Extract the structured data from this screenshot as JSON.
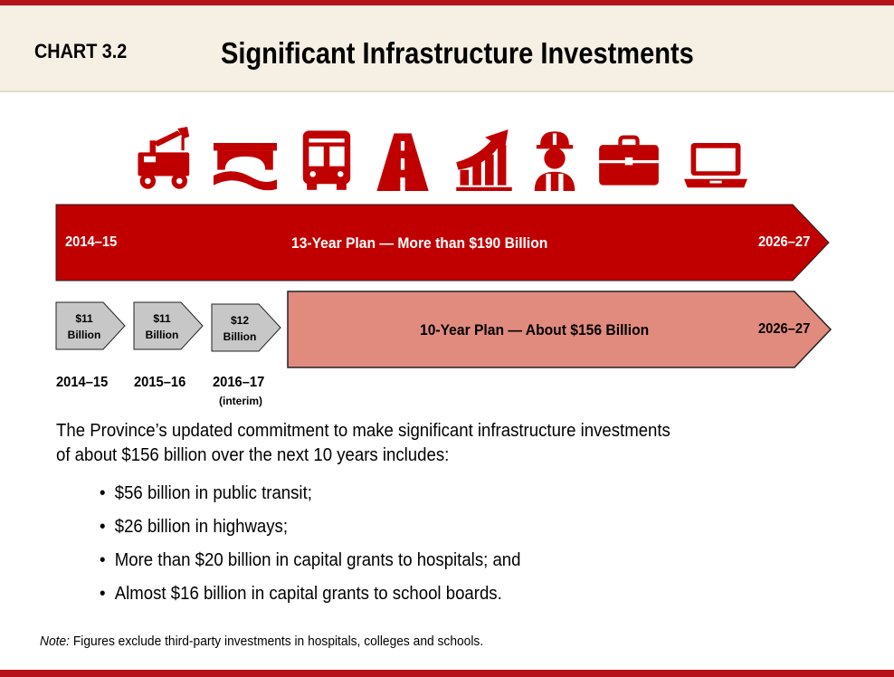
{
  "header": {
    "chart_label": "CHART 3.2",
    "title": "Significant Infrastructure Investments"
  },
  "icons": [
    "crane-truck-icon",
    "bridge-icon",
    "bus-icon",
    "highway-icon",
    "growth-chart-icon",
    "worker-icon",
    "briefcase-icon",
    "laptop-icon"
  ],
  "colors": {
    "dark_red": "#c00000",
    "light_red": "#e08b7e",
    "grey_chevron": "#c7c7c7",
    "accent_rule": "#b5121b"
  },
  "plan13": {
    "start": "2014–15",
    "label": "13-Year Plan — More than $190 Billion",
    "end": "2026–27"
  },
  "annual": [
    {
      "amount": "$11",
      "unit": "Billion",
      "year": "2014–15",
      "note": ""
    },
    {
      "amount": "$11",
      "unit": "Billion",
      "year": "2015–16",
      "note": ""
    },
    {
      "amount": "$12",
      "unit": "Billion",
      "year": "2016–17",
      "note": "(interim)"
    }
  ],
  "plan10": {
    "label": "10-Year Plan  — About $156 Billion",
    "end": "2026–27"
  },
  "body": {
    "line1": "The Province’s updated commitment to make significant infrastructure investments",
    "line2": "of about $156 billion over the next 10 years includes:"
  },
  "bullets": [
    "$56 billion in public transit;",
    "$26 billion in highways;",
    "More than $20 billion in capital grants to hospitals; and",
    "Almost $16 billion in capital grants to school boards."
  ],
  "note": {
    "prefix": "Note:",
    "text": " Figures exclude third-party investments in hospitals, colleges and schools."
  }
}
